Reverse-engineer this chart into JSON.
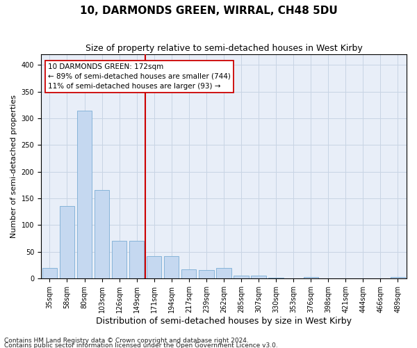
{
  "title": "10, DARMONDS GREEN, WIRRAL, CH48 5DU",
  "subtitle": "Size of property relative to semi-detached houses in West Kirby",
  "xlabel": "Distribution of semi-detached houses by size in West Kirby",
  "ylabel": "Number of semi-detached properties",
  "footnote1": "Contains HM Land Registry data © Crown copyright and database right 2024.",
  "footnote2": "Contains public sector information licensed under the Open Government Licence v3.0.",
  "annotation_line1": "10 DARMONDS GREEN: 172sqm",
  "annotation_line2": "← 89% of semi-detached houses are smaller (744)",
  "annotation_line3": "11% of semi-detached houses are larger (93) →",
  "bar_color": "#c5d8f0",
  "bar_edge_color": "#7aadd4",
  "vline_color": "#cc0000",
  "vline_x": 5.5,
  "categories": [
    "35sqm",
    "58sqm",
    "80sqm",
    "103sqm",
    "126sqm",
    "149sqm",
    "171sqm",
    "194sqm",
    "217sqm",
    "239sqm",
    "262sqm",
    "285sqm",
    "307sqm",
    "330sqm",
    "353sqm",
    "376sqm",
    "398sqm",
    "421sqm",
    "444sqm",
    "466sqm",
    "489sqm"
  ],
  "values": [
    20,
    135,
    315,
    165,
    70,
    70,
    42,
    42,
    17,
    15,
    20,
    5,
    5,
    1,
    0,
    3,
    0,
    0,
    0,
    0,
    3
  ],
  "ylim": [
    0,
    420
  ],
  "yticks": [
    0,
    50,
    100,
    150,
    200,
    250,
    300,
    350,
    400
  ],
  "grid_color": "#c8d4e4",
  "bg_color": "#e8eef8",
  "title_fontsize": 11,
  "subtitle_fontsize": 9,
  "ylabel_fontsize": 8,
  "xlabel_fontsize": 9,
  "tick_fontsize": 7,
  "footnote_fontsize": 6.5,
  "annot_fontsize": 7.5
}
